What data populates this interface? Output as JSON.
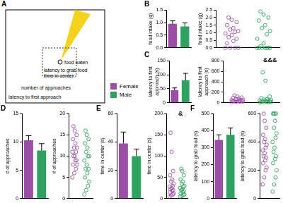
{
  "diagram": {
    "panel_label": "A",
    "texts": [
      "food eaten",
      "latency to grab food",
      "time in center:",
      "number of approaches",
      "latency to first approach"
    ]
  },
  "chart_data": [
    {
      "type": "bar",
      "panel_label": "B",
      "y_label": "food intake (g)",
      "categories": [
        null,
        null
      ],
      "values": [
        0.95,
        0.85
      ],
      "errors": [
        0.12,
        0.14
      ],
      "colors": [
        "#9b4ea6",
        "#2ea35f"
      ],
      "ylim": [
        0,
        1.5
      ],
      "yticks": [
        {
          "value": 0,
          "label": "0.0"
        },
        0.5,
        {
          "value": 1,
          "label": "1.0"
        },
        1.5
      ],
      "grid": false,
      "tick_labels": "y"
    },
    {
      "type": "scatter",
      "y_label": "food intake (g)",
      "xlim": [
        0,
        2
      ],
      "ylim": [
        0,
        2.5
      ],
      "yticks": [
        {
          "value": 0,
          "label": "0.0"
        },
        0.5,
        {
          "value": 1,
          "label": "1.0"
        },
        1.5,
        {
          "value": 2,
          "label": "2.0"
        },
        2.5
      ],
      "grid": false,
      "tick_labels": "y",
      "series": [
        {
          "name": "Female",
          "color": "#9b4ea6",
          "marker": "circle-open",
          "x": [
            0.3,
            0.45,
            0.6,
            0.7,
            0.35,
            0.55,
            0.65,
            0.4,
            0.5,
            0.3,
            0.6,
            0.7,
            0.45,
            0.55,
            0.35,
            0.65,
            0.5,
            0.4
          ],
          "values": [
            0,
            0,
            0,
            0,
            0.3,
            0.45,
            0.6,
            0.7,
            0.85,
            0.95,
            1.05,
            1.1,
            1.2,
            1.3,
            1.5,
            1.7,
            1.85,
            2.0
          ]
        },
        {
          "name": "Male",
          "color": "#2ea35f",
          "marker": "circle-open",
          "x": [
            1.3,
            1.45,
            1.6,
            1.7,
            1.35,
            1.55,
            1.65,
            1.4,
            1.5,
            1.3,
            1.6,
            1.7,
            1.45,
            1.55,
            1.35,
            1.65,
            1.5,
            1.4
          ],
          "values": [
            0,
            0,
            0,
            0,
            0,
            0,
            0,
            0.1,
            0.3,
            0.6,
            0.9,
            1.1,
            1.3,
            1.5,
            1.8,
            2.0,
            2.2,
            2.4
          ]
        }
      ]
    },
    {
      "type": "bar",
      "panel_label": "C",
      "y_label": [
        "latency to first",
        "approach (s)"
      ],
      "categories": [
        null,
        null
      ],
      "values": [
        45,
        80
      ],
      "errors": [
        8,
        25
      ],
      "colors": [
        "#9b4ea6",
        "#2ea35f"
      ],
      "ylim": [
        0,
        150
      ],
      "yticks": [
        0,
        50,
        100,
        150
      ],
      "grid": false,
      "tick_labels": "y"
    },
    {
      "type": "scatter",
      "y_label": [
        "latency to first",
        "approach (s)"
      ],
      "annotation": "&&&",
      "xlim": [
        0,
        2
      ],
      "ylim": [
        0,
        800
      ],
      "yticks": [
        0,
        200,
        400,
        600,
        800
      ],
      "grid": false,
      "tick_labels": "y",
      "series": [
        {
          "name": "Female",
          "color": "#9b4ea6",
          "marker": "circle-open",
          "x": [
            0.3,
            0.45,
            0.6,
            0.7,
            0.35,
            0.55,
            0.65,
            0.4,
            0.5,
            0.3,
            0.6,
            0.7,
            0.45,
            0.55,
            0.35,
            0.65,
            0.5,
            0.4
          ],
          "values": [
            10,
            15,
            20,
            25,
            30,
            30,
            35,
            40,
            45,
            50,
            55,
            60,
            70,
            80,
            90,
            100,
            120,
            140
          ]
        },
        {
          "name": "Male",
          "color": "#2ea35f",
          "marker": "circle-open",
          "x": [
            1.3,
            1.45,
            1.6,
            1.7,
            1.35,
            1.55,
            1.65,
            1.4,
            1.5,
            1.3,
            1.6,
            1.7,
            1.45,
            1.55,
            1.35,
            1.65,
            1.5,
            1.4
          ],
          "values": [
            5,
            10,
            10,
            15,
            20,
            20,
            25,
            30,
            35,
            40,
            45,
            50,
            60,
            70,
            90,
            120,
            420,
            580
          ]
        }
      ]
    },
    {
      "type": "bar",
      "panel_label": "D",
      "y_label": "# of approaches",
      "categories": [
        null,
        null
      ],
      "values": [
        10.3,
        8.5
      ],
      "errors": [
        0.8,
        1.2
      ],
      "colors": [
        "#9b4ea6",
        "#2ea35f"
      ],
      "ylim": [
        0,
        15
      ],
      "yticks": [
        0,
        5,
        10,
        15
      ],
      "grid": false,
      "tick_labels": "y"
    },
    {
      "type": "scatter",
      "y_label": "# of approaches",
      "xlim": [
        0,
        2
      ],
      "ylim": [
        0,
        20
      ],
      "yticks": [
        0,
        5,
        10,
        15,
        20
      ],
      "grid": false,
      "tick_labels": "y",
      "series": [
        {
          "name": "Female",
          "color": "#9b4ea6",
          "marker": "circle-open",
          "x": [
            0.3,
            0.45,
            0.6,
            0.7,
            0.35,
            0.55,
            0.65,
            0.4,
            0.5,
            0.3,
            0.6,
            0.7,
            0.45,
            0.55,
            0.35,
            0.65,
            0.5,
            0.4
          ],
          "values": [
            5,
            6,
            7,
            8,
            8,
            9,
            9,
            10,
            10,
            11,
            11,
            12,
            12,
            13,
            14,
            15,
            16,
            17
          ]
        },
        {
          "name": "Male",
          "color": "#2ea35f",
          "marker": "circle-open",
          "x": [
            1.3,
            1.45,
            1.6,
            1.7,
            1.35,
            1.55,
            1.65,
            1.4,
            1.5,
            1.3,
            1.6,
            1.7,
            1.45,
            1.55,
            1.35,
            1.65,
            1.5,
            1.4
          ],
          "values": [
            1,
            2,
            3,
            4,
            5,
            6,
            7,
            7,
            8,
            9,
            10,
            10,
            11,
            12,
            13,
            14,
            15,
            16
          ]
        }
      ]
    },
    {
      "type": "bar",
      "panel_label": "E",
      "y_label": "time in center (s)",
      "categories": [
        null,
        null
      ],
      "values": [
        39,
        30
      ],
      "errors": [
        8,
        5
      ],
      "colors": [
        "#9b4ea6",
        "#2ea35f"
      ],
      "ylim": [
        0,
        60
      ],
      "yticks": [
        0,
        20,
        40,
        60
      ],
      "grid": false,
      "tick_labels": "y"
    },
    {
      "type": "scatter",
      "y_label": "time in center (s)",
      "annotation": "&",
      "xlim": [
        0,
        2
      ],
      "ylim": [
        0,
        200
      ],
      "yticks": [
        0,
        50,
        100,
        150,
        200
      ],
      "grid": false,
      "tick_labels": "y",
      "series": [
        {
          "name": "Female",
          "color": "#9b4ea6",
          "marker": "circle-open",
          "x": [
            0.3,
            0.45,
            0.6,
            0.7,
            0.35,
            0.55,
            0.65,
            0.4,
            0.5,
            0.3,
            0.6,
            0.7,
            0.45,
            0.55,
            0.35,
            0.65,
            0.5,
            0.4
          ],
          "values": [
            5,
            8,
            10,
            12,
            15,
            18,
            20,
            22,
            25,
            28,
            30,
            35,
            40,
            45,
            55,
            65,
            110,
            155
          ]
        },
        {
          "name": "Male",
          "color": "#2ea35f",
          "marker": "circle-open",
          "x": [
            1.3,
            1.45,
            1.6,
            1.7,
            1.35,
            1.55,
            1.65,
            1.4,
            1.5,
            1.3,
            1.6,
            1.7,
            1.45,
            1.55,
            1.35,
            1.65,
            1.5,
            1.4
          ],
          "values": [
            5,
            6,
            8,
            10,
            12,
            15,
            18,
            20,
            22,
            25,
            28,
            30,
            35,
            40,
            45,
            55,
            65,
            70
          ]
        }
      ]
    },
    {
      "type": "bar",
      "panel_label": "F",
      "y_label": "latency to grab food (s)",
      "categories": [
        null,
        null
      ],
      "values": [
        345,
        375
      ],
      "errors": [
        30,
        40
      ],
      "colors": [
        "#9b4ea6",
        "#2ea35f"
      ],
      "ylim": [
        0,
        500
      ],
      "yticks": [
        0,
        100,
        200,
        300,
        400,
        500
      ],
      "grid": false,
      "tick_labels": "y"
    },
    {
      "type": "scatter",
      "y_label": "latency to grab food (s)",
      "xlim": [
        0,
        2
      ],
      "ylim": [
        0,
        600
      ],
      "yticks": [
        0,
        200,
        400,
        600
      ],
      "grid": false,
      "tick_labels": "y",
      "series": [
        {
          "name": "Female",
          "color": "#9b4ea6",
          "marker": "circle-open",
          "x": [
            0.3,
            0.45,
            0.6,
            0.7,
            0.35,
            0.55,
            0.65,
            0.4,
            0.5,
            0.3,
            0.6,
            0.7,
            0.45,
            0.55,
            0.35,
            0.65,
            0.5,
            0.4
          ],
          "values": [
            100,
            150,
            200,
            220,
            250,
            270,
            290,
            300,
            320,
            340,
            360,
            380,
            400,
            420,
            450,
            500,
            550,
            600
          ]
        },
        {
          "name": "Male",
          "color": "#2ea35f",
          "marker": "circle-open",
          "x": [
            1.3,
            1.45,
            1.6,
            1.7,
            1.35,
            1.55,
            1.65,
            1.4,
            1.5,
            1.3,
            1.6,
            1.7,
            1.45,
            1.55,
            1.35,
            1.65,
            1.5,
            1.4
          ],
          "values": [
            50,
            100,
            150,
            200,
            250,
            280,
            300,
            330,
            360,
            400,
            430,
            460,
            500,
            550,
            600,
            600,
            600,
            600
          ]
        }
      ]
    }
  ]
}
